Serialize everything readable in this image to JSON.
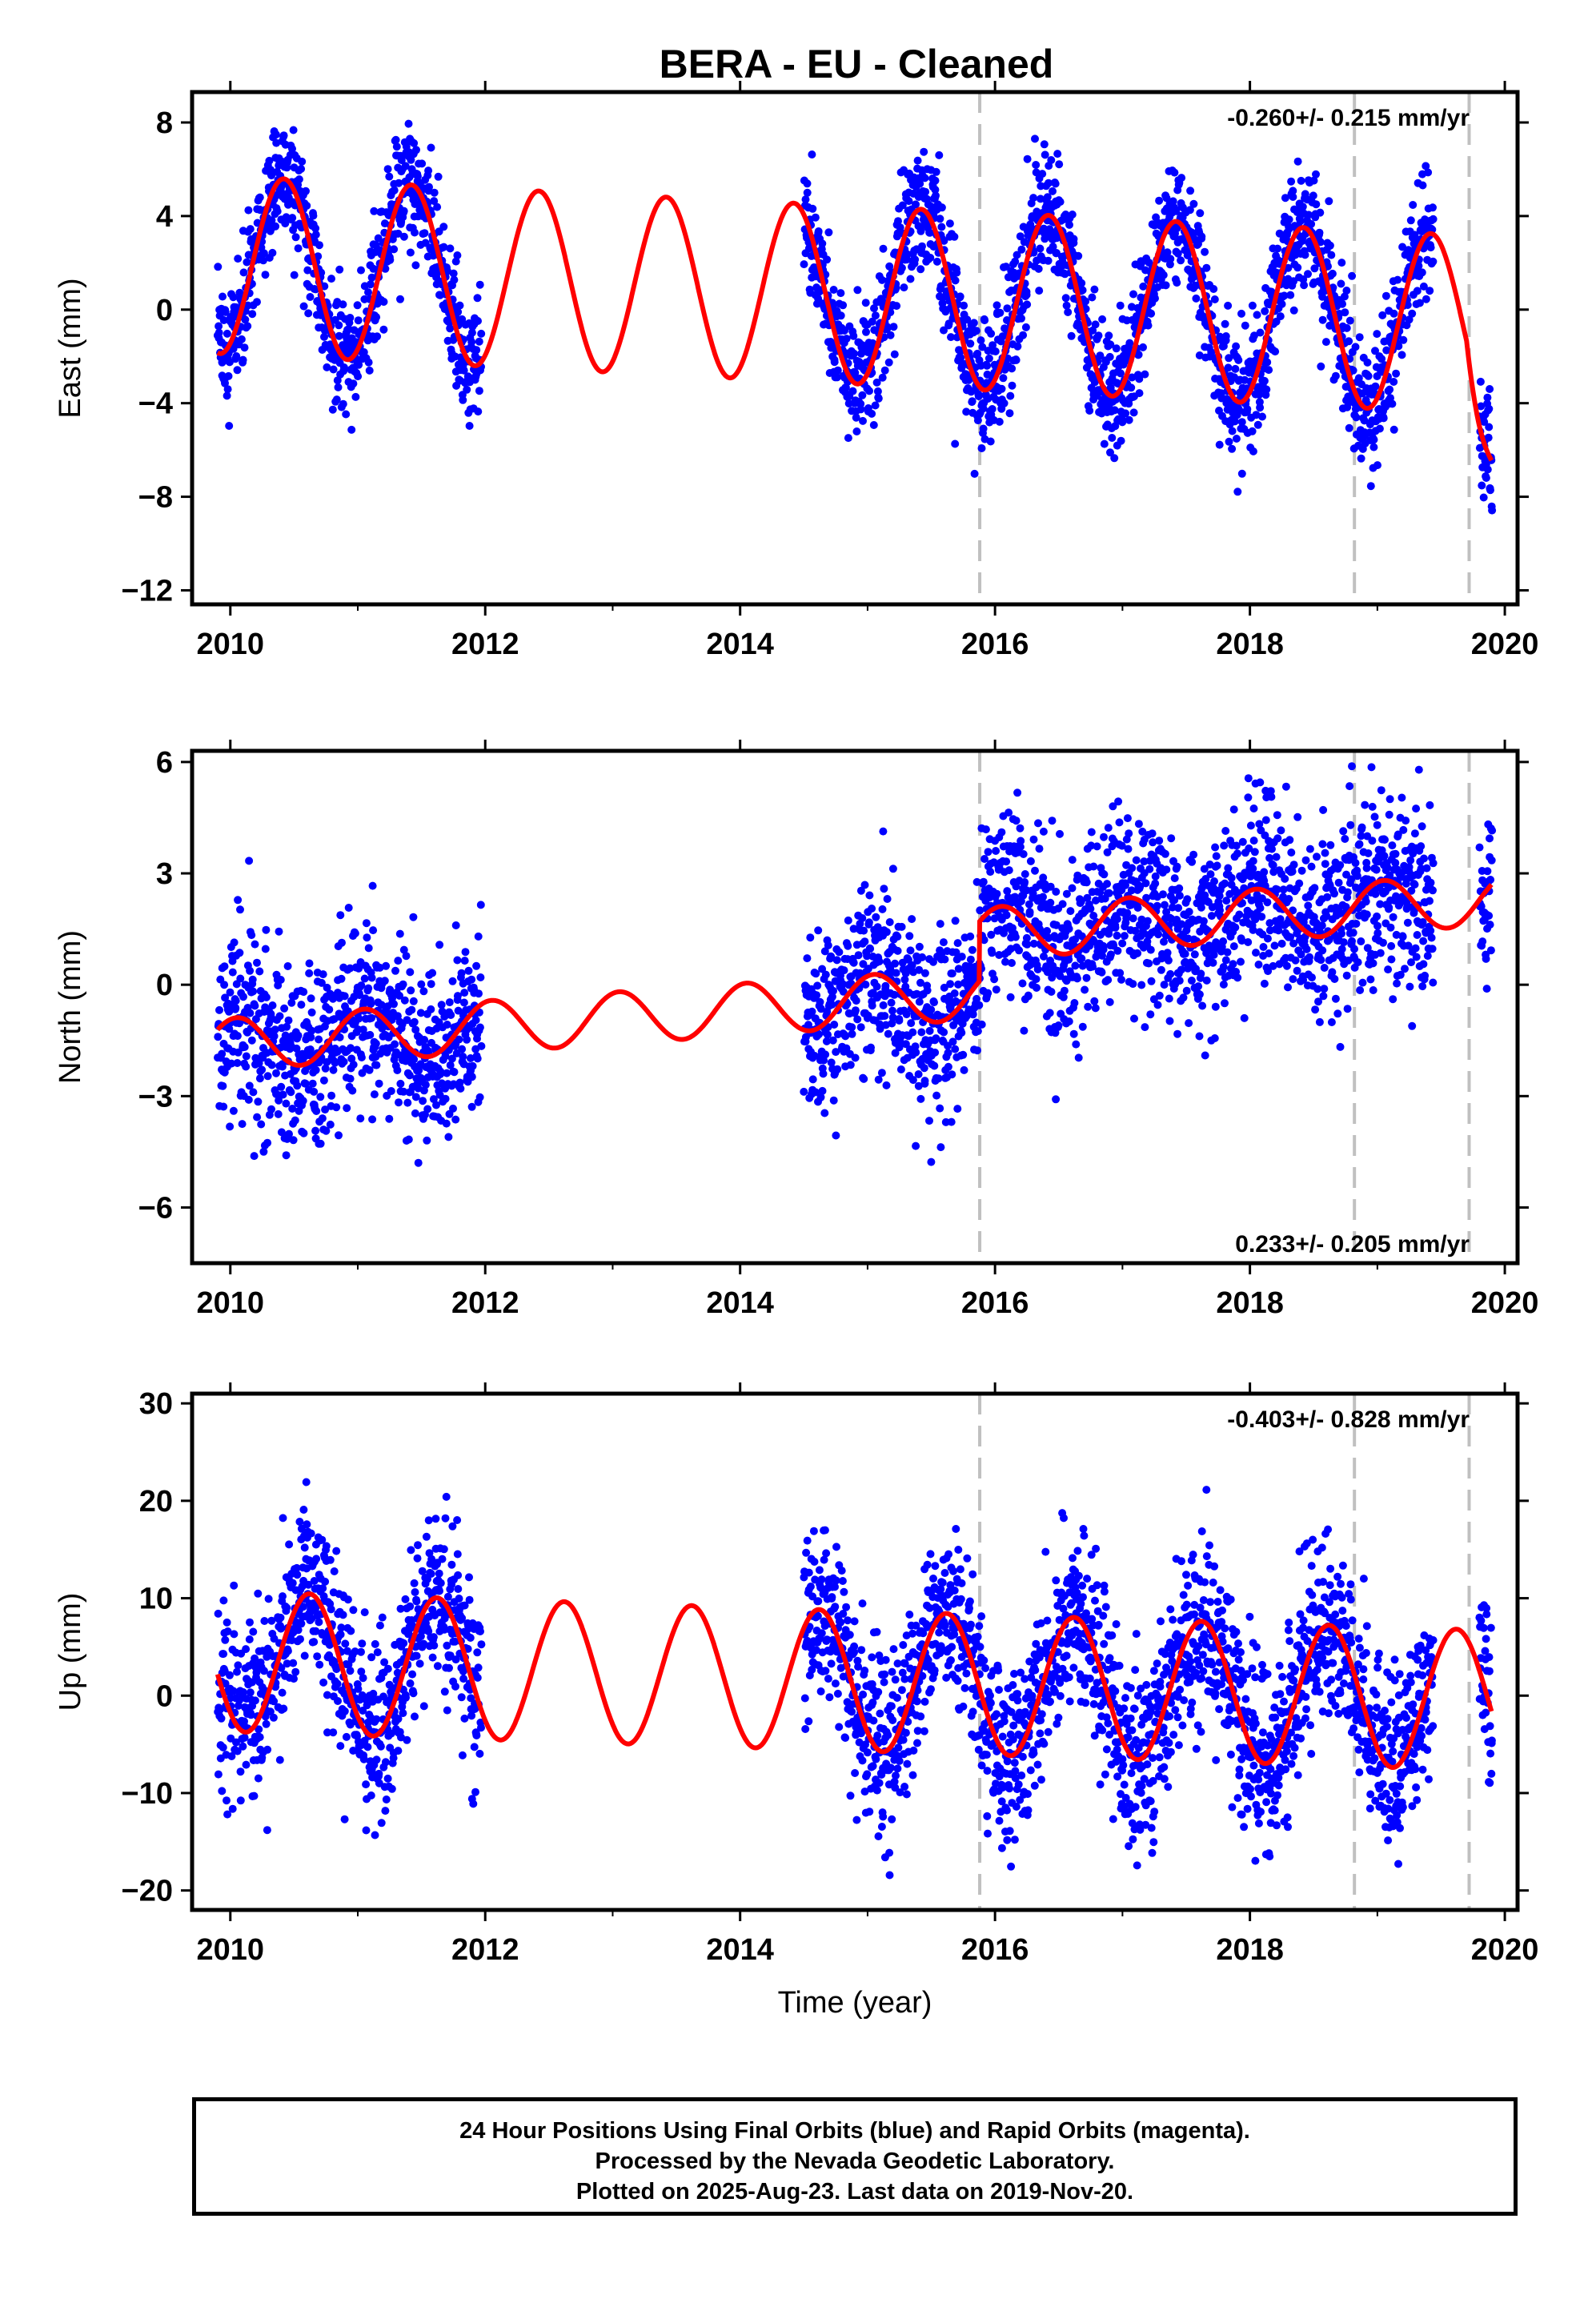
{
  "title": "BERA  - EU - Cleaned",
  "colors": {
    "data": "#0000ff",
    "model": "#ff0000",
    "break": "#c0c0c0",
    "axis": "#000000"
  },
  "chart_data": [
    {
      "type": "scatter",
      "component": "East",
      "ylabel": "East (mm)",
      "xlabel": "",
      "xlim": [
        2009.7,
        2020.1
      ],
      "ylim": [
        -12.6,
        9.3
      ],
      "xticks": [
        2010,
        2012,
        2014,
        2016,
        2018,
        2020
      ],
      "yticks": [
        8,
        4,
        0,
        -4,
        -8,
        -12
      ],
      "ytick_labels": [
        "8",
        "4",
        "0",
        "−4",
        "−8",
        "−12"
      ],
      "rate_label": "-0.260+/- 0.215 mm/yr",
      "rate_position": "top-right",
      "breaks": [
        2015.88,
        2018.82,
        2019.72
      ],
      "data_segments": [
        [
          2009.9,
          2011.97
        ],
        [
          2014.5,
          2019.44
        ],
        [
          2019.8,
          2019.9
        ]
      ],
      "model": {
        "amplitude_mm": 3.8,
        "offset_mm": 1.9,
        "trend_mm_per_yr": -0.26,
        "phase_peak_year_fraction": 0.42,
        "end_value_mm": -6.5
      },
      "noise_sd_mm": 1.3,
      "points_approx": 2600
    },
    {
      "type": "scatter",
      "component": "North",
      "ylabel": "North (mm)",
      "xlabel": "",
      "xlim": [
        2009.7,
        2020.1
      ],
      "ylim": [
        -7.5,
        6.3
      ],
      "xticks": [
        2010,
        2012,
        2014,
        2016,
        2018,
        2020
      ],
      "yticks": [
        6,
        3,
        0,
        -3,
        -6
      ],
      "ytick_labels": [
        "6",
        "3",
        "0",
        "−3",
        "−6"
      ],
      "rate_label": "0.233+/- 0.205 mm/yr",
      "rate_position": "bottom-right",
      "breaks": [
        2015.88,
        2018.82,
        2019.72
      ],
      "data_segments": [
        [
          2009.9,
          2011.97
        ],
        [
          2014.5,
          2019.44
        ],
        [
          2019.8,
          2019.9
        ]
      ],
      "model": {
        "amplitude_mm": 0.7,
        "offset_mm": -1.6,
        "trend_mm_per_yr": 0.233,
        "phase_peak_year_fraction": 0.05,
        "step_2015_88_mm": 1.6
      },
      "noise_sd_mm": 1.2,
      "points_approx": 2600
    },
    {
      "type": "scatter",
      "component": "Up",
      "ylabel": "Up (mm)",
      "xlabel": "Time (year)",
      "xlim": [
        2009.7,
        2020.1
      ],
      "ylim": [
        -22,
        31
      ],
      "xticks": [
        2010,
        2012,
        2014,
        2016,
        2018,
        2020
      ],
      "yticks": [
        30,
        20,
        10,
        0,
        -10,
        -20
      ],
      "ytick_labels": [
        "30",
        "20",
        "10",
        "0",
        "−10",
        "−20"
      ],
      "rate_label": "-0.403+/- 0.828 mm/yr",
      "rate_position": "top-right",
      "breaks": [
        2015.88,
        2018.82,
        2019.72
      ],
      "data_segments": [
        [
          2009.9,
          2011.97
        ],
        [
          2014.5,
          2019.44
        ],
        [
          2019.8,
          2019.9
        ]
      ],
      "model": {
        "amplitude_mm": 7.2,
        "offset_mm": 3.5,
        "trend_mm_per_yr": -0.403,
        "phase_peak_year_fraction": 0.62
      },
      "noise_sd_mm": 4.5,
      "points_approx": 2600
    }
  ],
  "footer": {
    "line1": "24 Hour Positions Using Final Orbits (blue) and Rapid Orbits (magenta).",
    "line2": "Processed by the Nevada Geodetic Laboratory.",
    "line3": "Plotted on 2025-Aug-23. Last data on 2019-Nov-20."
  }
}
